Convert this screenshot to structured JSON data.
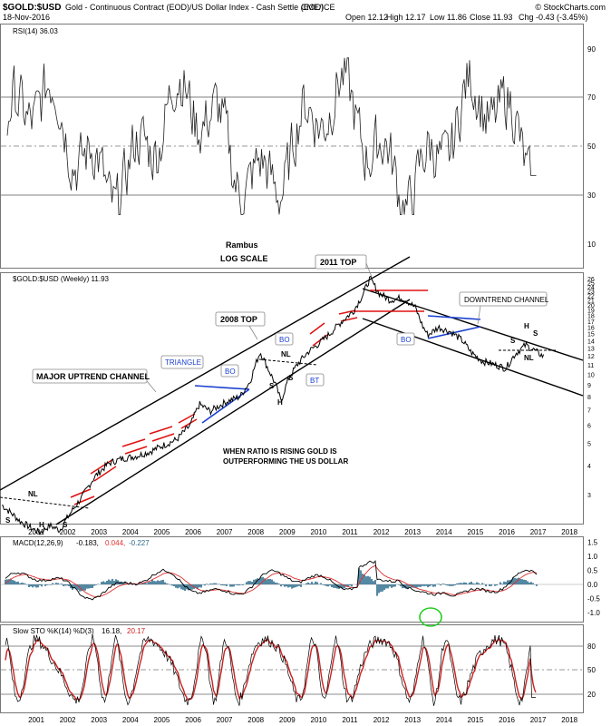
{
  "header": {
    "symbol": "$GOLD:$USD",
    "description": "Gold - Continuous Contract (EOD)/US Dollar Index - Cash Settle (EOD)",
    "exchange": "CME/ICE",
    "date": "18-Nov-2016",
    "open": "Open 12.12",
    "high": "High 12.17",
    "low": "Low 11.86",
    "close": "Close 11.93",
    "change": "Chg -0.43 (-3.45%)",
    "watermark": "© StockCharts.com"
  },
  "rsi": {
    "legend": "RSI(14) 36.03",
    "ticks": [
      "90",
      "70",
      "50",
      "30",
      "10"
    ]
  },
  "price": {
    "legend": "$GOLD:$USD (Weekly) 11.93",
    "ticks": [
      "26",
      "25",
      "24",
      "23",
      "22",
      "21",
      "20",
      "19",
      "18",
      "17",
      "16",
      "15",
      "14",
      "13",
      "12",
      "11",
      "10",
      "9",
      "8",
      "7",
      "6",
      "5",
      "4",
      "3"
    ]
  },
  "macd": {
    "legend_name": "MACD(12,26,9)",
    "legend_macd": "-0.183,",
    "legend_signal": "0.044,",
    "legend_hist": "-0.227",
    "ticks": [
      "1.5",
      "1.0",
      "0.5",
      "0.0",
      "-0.5",
      "-1.0"
    ]
  },
  "sto": {
    "legend_name": "Slow STO %K(14) %D(3)",
    "legend_k": "16.18,",
    "legend_d": "20.17",
    "ticks": [
      "80",
      "50",
      "20"
    ]
  },
  "x_labels": [
    "2001",
    "2002",
    "2003",
    "2004",
    "2005",
    "2006",
    "2007",
    "2008",
    "2009",
    "2010",
    "2011",
    "2012",
    "2013",
    "2014",
    "2015",
    "2016",
    "2017",
    "2018"
  ],
  "annotations": {
    "rambus": "Rambus",
    "log_scale": "LOG SCALE",
    "top_2011": "2011 TOP",
    "top_2008": "2008 TOP",
    "triangle": "TRIANGLE",
    "major_channel": "MAJOR UPTREND CHANNEL",
    "downtrend_channel": "DOWNTREND CHANNEL",
    "ratio_note_1": "WHEN RATIO IS RISING GOLD IS",
    "ratio_note_2": "OUTPERFORMING THE US DOLLAR",
    "bo": "BO",
    "bt": "BT",
    "nl": "NL",
    "s": "S",
    "h": "H"
  },
  "colors": {
    "channel": "#000000",
    "red": "#e01010",
    "blue": "#1a3fd0",
    "macd_signal": "#e03030",
    "macd_hist": "#2a6a8a",
    "sto_d": "#cc2020",
    "green_circle": "#22cc22",
    "rsi_fill": "#2a5a3a"
  }
}
